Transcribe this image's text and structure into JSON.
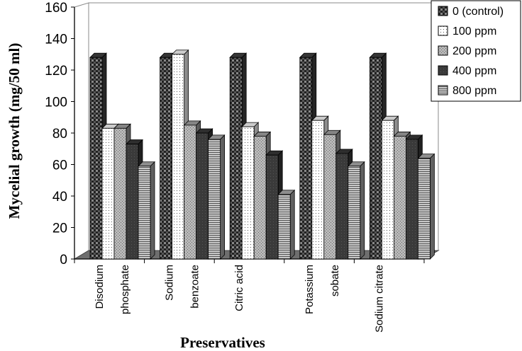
{
  "chart_data": {
    "type": "bar",
    "title": "",
    "xlabel": "Preservatives",
    "ylabel": "Mycelial growth (mg/50 ml)",
    "ylim": [
      0,
      160
    ],
    "yticks": [
      0,
      20,
      40,
      60,
      80,
      100,
      120,
      140,
      160
    ],
    "categories": [
      [
        "Disodium",
        "phosphate"
      ],
      [
        "Sodium",
        "benzoate"
      ],
      [
        "Citric acid"
      ],
      [
        "Potassium",
        "sobate"
      ],
      [
        "Sodium citrate"
      ]
    ],
    "legend_position": "top-right",
    "grid": false,
    "series": [
      {
        "name": "0  (control)",
        "fill": "#444444",
        "pattern": "checker",
        "values": [
          128,
          128,
          128,
          128,
          128
        ]
      },
      {
        "name": "100   ppm",
        "fill": "#ffffff",
        "pattern": "dots",
        "values": [
          83,
          130,
          84,
          88,
          88
        ]
      },
      {
        "name": "200   ppm",
        "fill": "#a6a6a6",
        "pattern": "speckle",
        "values": [
          83,
          85,
          78,
          79,
          78
        ]
      },
      {
        "name": "400   ppm",
        "fill": "#3a3a3a",
        "pattern": "dark",
        "values": [
          73,
          80,
          66,
          67,
          76
        ]
      },
      {
        "name": "800   ppm",
        "fill": "#b0b0b0",
        "pattern": "hlines",
        "values": [
          59,
          76,
          41,
          59,
          64
        ]
      }
    ]
  }
}
